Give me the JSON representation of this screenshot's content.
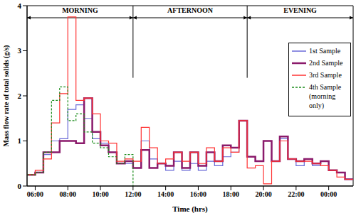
{
  "chart_data": {
    "type": "step",
    "x_label": "Time (hrs)",
    "y_label": "Mass flow rate of total solids (g/s)",
    "x": [
      5.5,
      6.0,
      6.5,
      7.0,
      7.5,
      8.0,
      8.5,
      9.0,
      9.5,
      10.0,
      10.5,
      11.0,
      11.5,
      12.0,
      12.5,
      13.0,
      13.5,
      14.0,
      14.5,
      15.0,
      15.5,
      16.0,
      16.5,
      17.0,
      17.5,
      18.0,
      18.5,
      19.0,
      19.5,
      20.0,
      20.5,
      21.0,
      21.5,
      22.0,
      22.5,
      23.0,
      23.5,
      24.0,
      24.5,
      25.0,
      25.5
    ],
    "xlim": [
      5.5,
      25.5
    ],
    "xticks": [
      {
        "value": 6,
        "label": "06:00"
      },
      {
        "value": 8,
        "label": "08:00"
      },
      {
        "value": 10,
        "label": "10:00"
      },
      {
        "value": 12,
        "label": "12:00"
      },
      {
        "value": 14,
        "label": "14:00"
      },
      {
        "value": 16,
        "label": "16:00"
      },
      {
        "value": 18,
        "label": "18:00"
      },
      {
        "value": 20,
        "label": "20:00"
      },
      {
        "value": 22,
        "label": "22:00"
      },
      {
        "value": 24,
        "label": "00:00"
      }
    ],
    "ylim": [
      0,
      4
    ],
    "yticks": [
      0,
      1,
      2,
      3,
      4
    ],
    "grid": false,
    "legend": "upper right",
    "series": [
      {
        "name": "1st Sample",
        "color": "#6a6ad8",
        "line_style": "solid",
        "values": [
          0.25,
          0.3,
          0.7,
          1.0,
          1.05,
          1.7,
          1.8,
          1.5,
          1.05,
          0.95,
          0.75,
          0.5,
          0.5,
          0.4,
          1.0,
          0.6,
          0.5,
          0.35,
          0.55,
          0.35,
          0.5,
          0.35,
          0.55,
          0.45,
          0.65,
          0.75,
          1.45,
          0.65,
          0.55,
          1.0,
          0.55,
          1.05,
          0.6,
          0.45,
          0.6,
          0.45,
          0.55,
          0.35,
          0.3,
          0.15,
          0.15
        ]
      },
      {
        "name": "2nd Sample",
        "color": "#8b1a6b",
        "line_style": "solid",
        "values": [
          0.25,
          0.3,
          0.75,
          0.75,
          1.0,
          1.0,
          0.95,
          1.95,
          1.2,
          0.9,
          0.75,
          0.5,
          0.55,
          0.4,
          0.8,
          0.4,
          0.5,
          0.45,
          0.75,
          0.4,
          0.75,
          0.45,
          0.75,
          0.55,
          0.9,
          0.85,
          1.45,
          0.65,
          0.55,
          1.0,
          0.55,
          1.1,
          0.6,
          0.55,
          0.6,
          0.5,
          0.55,
          0.35,
          0.3,
          0.15,
          0.15
        ]
      },
      {
        "name": "3rd Sample",
        "color": "#ff3333",
        "line_style": "solid",
        "values": [
          0.25,
          0.35,
          0.6,
          1.4,
          2.05,
          3.75,
          1.9,
          1.95,
          1.6,
          1.0,
          0.95,
          0.55,
          0.6,
          0.55,
          1.3,
          0.85,
          0.5,
          0.6,
          0.75,
          0.55,
          0.75,
          0.5,
          0.85,
          0.55,
          0.85,
          0.75,
          1.45,
          0.4,
          0.45,
          0.05,
          0.55,
          1.0,
          0.6,
          0.55,
          0.55,
          0.5,
          0.45,
          0.35,
          0.2,
          0.15,
          0.15
        ]
      },
      {
        "name": "4th Sample (morning only)",
        "color": "#1a8c1a",
        "line_style": "dotted",
        "values": [
          0.25,
          0.3,
          0.75,
          1.9,
          2.2,
          1.45,
          1.6,
          1.2,
          0.95,
          0.85,
          0.65,
          0.5,
          0.7,
          0,
          null,
          null,
          null,
          null,
          null,
          null,
          null,
          null,
          null,
          null,
          null,
          null,
          null,
          null,
          null,
          null,
          null,
          null,
          null,
          null,
          null,
          null,
          null,
          null,
          null,
          null,
          null
        ]
      }
    ],
    "periods": [
      {
        "label": "MORNING",
        "start": 5.5,
        "end": 12
      },
      {
        "label": "AFTERNOON",
        "start": 12,
        "end": 19
      },
      {
        "label": "EVENING",
        "start": 19,
        "end": 25.5
      }
    ],
    "divider_low": 2.4
  }
}
